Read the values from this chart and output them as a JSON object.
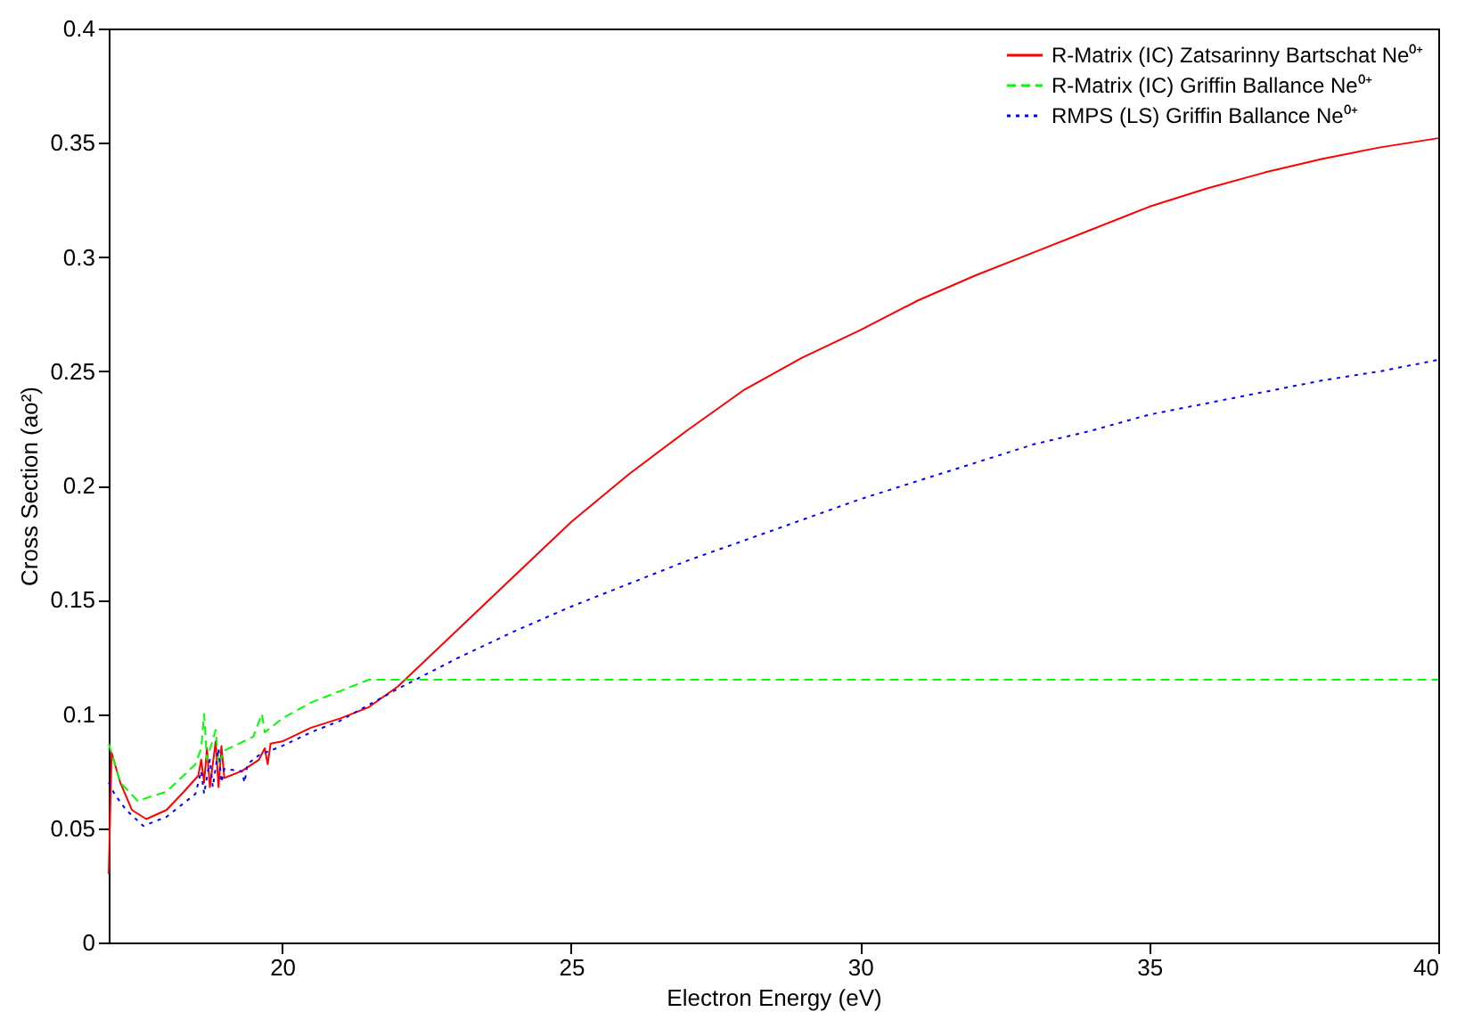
{
  "chart_data": {
    "type": "line",
    "xlabel": "Electron Energy (eV)",
    "ylabel": "Cross Section (ao²)",
    "xlim": [
      17,
      40
    ],
    "xticks": [
      20,
      25,
      30,
      35,
      40
    ],
    "ylim": [
      0,
      0.4
    ],
    "yticks": [
      0,
      0.05,
      0.1,
      0.15,
      0.2,
      0.25,
      0.3,
      0.35,
      0.4
    ],
    "grid": false,
    "legend": "top right",
    "series": [
      {
        "name": "R-Matrix (IC) Zatsarinny  Bartschat Ne⁰⁺",
        "color": "#ff0000",
        "line_style": "solid",
        "x": [
          17,
          17.05,
          17.2,
          17.4,
          17.65,
          18,
          18.3,
          18.55,
          18.6,
          18.65,
          18.7,
          18.75,
          18.85,
          18.9,
          18.95,
          19,
          19.3,
          19.6,
          19.7,
          19.75,
          19.8,
          20,
          20.5,
          21,
          21.5,
          22,
          22.5,
          23,
          24,
          25,
          26,
          27,
          28,
          29,
          30,
          31,
          32,
          33,
          34,
          35,
          36,
          37,
          38,
          39,
          40
        ],
        "values": [
          0.03,
          0.083,
          0.07,
          0.058,
          0.054,
          0.058,
          0.066,
          0.073,
          0.08,
          0.07,
          0.085,
          0.068,
          0.088,
          0.068,
          0.086,
          0.072,
          0.075,
          0.08,
          0.085,
          0.078,
          0.087,
          0.088,
          0.094,
          0.098,
          0.103,
          0.112,
          0.124,
          0.136,
          0.16,
          0.184,
          0.205,
          0.224,
          0.242,
          0.256,
          0.268,
          0.281,
          0.292,
          0.302,
          0.312,
          0.322,
          0.33,
          0.337,
          0.343,
          0.348,
          0.352
        ]
      },
      {
        "name": "R-Matrix (IC) Griffin  Ballance Ne⁰⁺",
        "color": "#00ff00",
        "line_style": "dashed",
        "x": [
          17,
          17.2,
          17.5,
          18,
          18.5,
          18.6,
          18.65,
          18.7,
          18.85,
          18.9,
          19,
          19.5,
          19.65,
          19.7,
          20,
          20.5,
          21,
          21.5,
          25,
          30,
          40
        ],
        "values": [
          0.087,
          0.07,
          0.062,
          0.066,
          0.078,
          0.085,
          0.1,
          0.08,
          0.093,
          0.078,
          0.084,
          0.09,
          0.1,
          0.092,
          0.098,
          0.105,
          0.11,
          0.115,
          0.115,
          0.115,
          0.115
        ]
      },
      {
        "name": "RMPS (LS) Griffin  Ballance Ne⁰⁺",
        "color": "#0000ff",
        "line_style": "dotted",
        "x": [
          17,
          17.1,
          17.3,
          17.6,
          18,
          18.5,
          18.6,
          18.65,
          18.75,
          18.8,
          18.9,
          18.95,
          19,
          19.3,
          19.35,
          19.4,
          19.6,
          20,
          20.5,
          21,
          21.5,
          22,
          23,
          24,
          25,
          26,
          27,
          28,
          29,
          30,
          31,
          32,
          33,
          34,
          35,
          36,
          37,
          38,
          39,
          40
        ],
        "values": [
          0.07,
          0.065,
          0.058,
          0.051,
          0.055,
          0.065,
          0.075,
          0.065,
          0.08,
          0.068,
          0.085,
          0.07,
          0.076,
          0.075,
          0.07,
          0.078,
          0.082,
          0.086,
          0.092,
          0.097,
          0.104,
          0.111,
          0.124,
          0.136,
          0.147,
          0.157,
          0.167,
          0.176,
          0.185,
          0.194,
          0.202,
          0.21,
          0.218,
          0.224,
          0.231,
          0.236,
          0.241,
          0.246,
          0.25,
          0.255
        ]
      }
    ]
  }
}
